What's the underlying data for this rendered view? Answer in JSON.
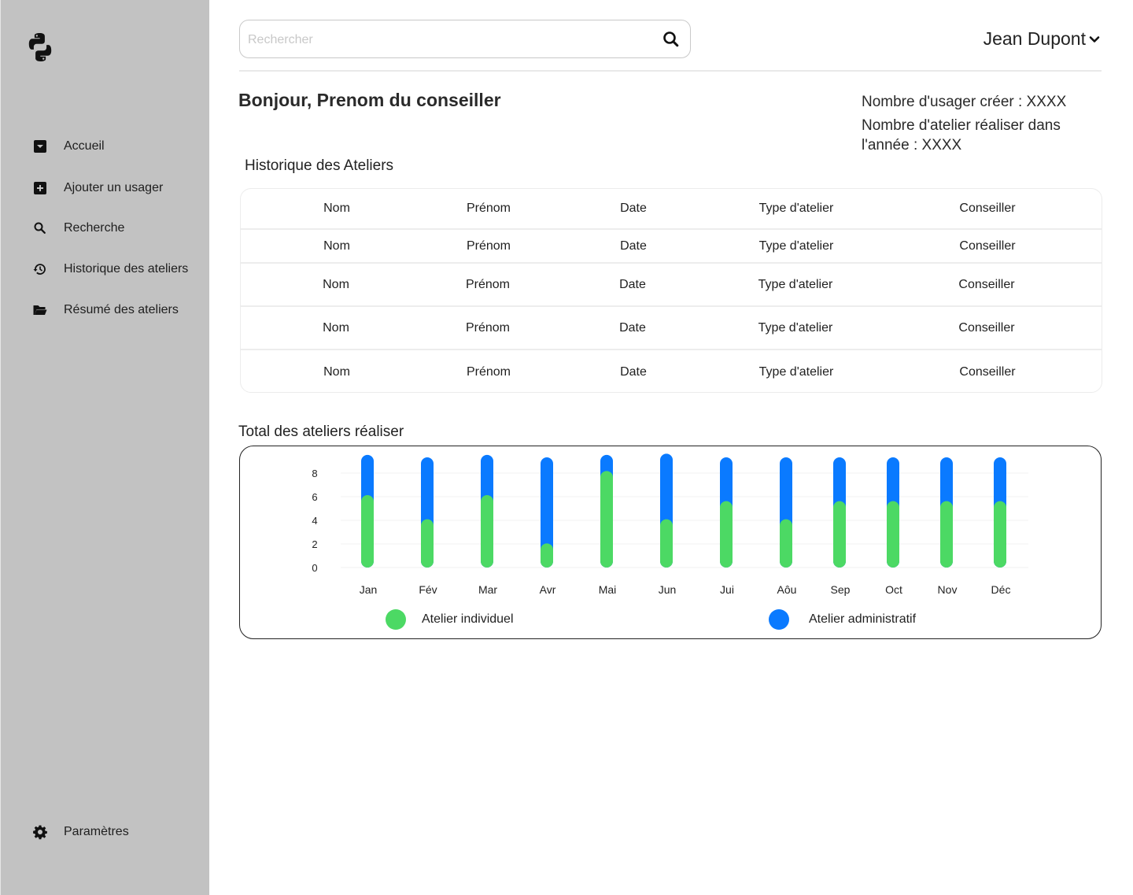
{
  "sidebar": {
    "items": [
      {
        "label": "Accueil",
        "icon": "inbox-icon"
      },
      {
        "label": "Ajouter un usager",
        "icon": "add-box-icon"
      },
      {
        "label": "Recherche",
        "icon": "search-icon"
      },
      {
        "label": "Historique des ateliers",
        "icon": "history-icon"
      },
      {
        "label": "Résumé des ateliers",
        "icon": "folder-open-icon"
      }
    ],
    "settings_label": "Paramètres"
  },
  "search": {
    "placeholder": "Rechercher"
  },
  "user": {
    "name": "Jean Dupont"
  },
  "greeting": "Bonjour, Prenom du conseiller",
  "stats": {
    "users_created": "Nombre d'usager créer :  XXXX",
    "workshops_year": "Nombre d'atelier réaliser dans l'année : XXXX"
  },
  "history": {
    "title": "Historique des Ateliers",
    "columns": [
      "Nom",
      "Prénom",
      "Date",
      "Type d'atelier",
      "Conseiller"
    ],
    "rows": [
      [
        "Nom",
        "Prénom",
        "Date",
        "Type d'atelier",
        "Conseiller"
      ],
      [
        "Nom",
        "Prénom",
        "Date",
        "Type d'atelier",
        "Conseiller"
      ],
      [
        "Nom",
        "Prénom",
        "Date",
        "Type d'atelier",
        "Conseiller"
      ],
      [
        "Nom",
        "Prénom",
        "Date",
        "Type d'atelier",
        "Conseiller"
      ]
    ]
  },
  "chart_title": "Total des ateliers réaliser",
  "chart_data": {
    "type": "bar",
    "stacked": true,
    "categories": [
      "Jan",
      "Fév",
      "Mar",
      "Avr",
      "Mai",
      "Jun",
      "Jui",
      "Aôu",
      "Sep",
      "Oct",
      "Nov",
      "Déc"
    ],
    "series": [
      {
        "name": "Atelier individuel",
        "color": "#4cd964",
        "values": [
          6,
          4,
          6,
          2,
          8,
          4,
          5.5,
          4,
          5.5,
          5.5,
          5.5,
          5.5
        ]
      },
      {
        "name": "Atelier administratif",
        "color": "#0a7aff",
        "values": [
          3.2,
          5,
          3.2,
          7,
          1.2,
          5.3,
          3.5,
          5,
          3.5,
          3.5,
          3.5,
          3.5
        ]
      }
    ],
    "yticks": [
      0,
      2,
      4,
      6,
      8
    ],
    "ylim": [
      0,
      9
    ],
    "grid": true,
    "legend": "bottom"
  }
}
